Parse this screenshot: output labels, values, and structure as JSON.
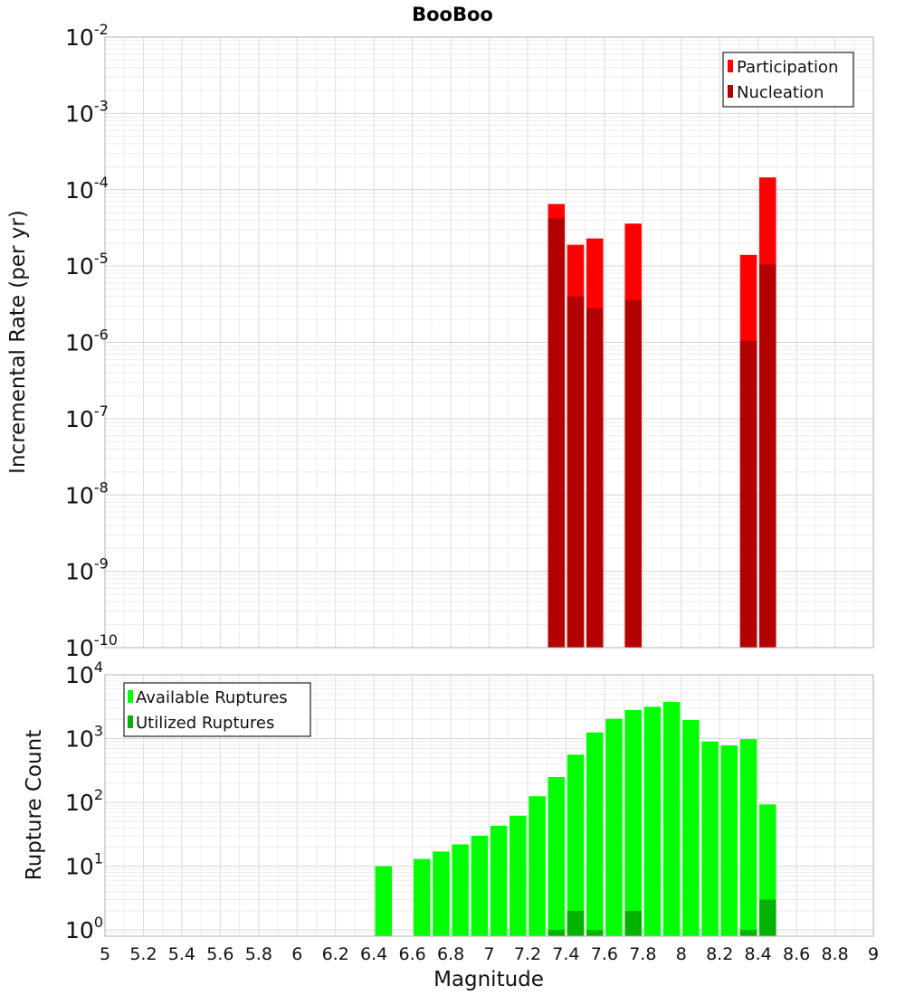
{
  "chart_data": [
    {
      "type": "bar",
      "title": "BooBoo",
      "xlabel": "",
      "ylabel": "Incremental Rate (per yr)",
      "y_scale": "log",
      "ylim": [
        1e-10,
        0.01
      ],
      "xlim": [
        5,
        9
      ],
      "grid": true,
      "legend_position": "top-right",
      "x": [
        7.35,
        7.45,
        7.55,
        7.75,
        8.35,
        8.45
      ],
      "series": [
        {
          "name": "Participation",
          "color": "#ff0000",
          "values": [
            6.5e-05,
            1.9e-05,
            2.3e-05,
            3.6e-05,
            1.4e-05,
            0.000145
          ]
        },
        {
          "name": "Nucleation",
          "color": "#b30000",
          "values": [
            4.2e-05,
            4e-06,
            2.8e-06,
            3.6e-06,
            1.05e-06,
            1.05e-05
          ]
        }
      ]
    },
    {
      "type": "bar",
      "title": "",
      "xlabel": "Magnitude",
      "ylabel": "Rupture Count",
      "y_scale": "log",
      "ylim": [
        0.8,
        10000.0
      ],
      "xlim": [
        5,
        9
      ],
      "grid": true,
      "legend_position": "top-left",
      "x_ticks": [
        "5",
        "5.2",
        "5.4",
        "5.6",
        "5.8",
        "6",
        "6.2",
        "6.4",
        "6.6",
        "6.8",
        "7",
        "7.2",
        "7.4",
        "7.6",
        "7.8",
        "8",
        "8.2",
        "8.4",
        "8.6",
        "8.8",
        "9"
      ],
      "series": [
        {
          "name": "Available Ruptures",
          "color": "#00ff00",
          "x": [
            6.45,
            6.65,
            6.75,
            6.85,
            6.95,
            7.05,
            7.15,
            7.25,
            7.35,
            7.45,
            7.55,
            7.65,
            7.75,
            7.85,
            7.95,
            8.05,
            8.15,
            8.25,
            8.35,
            8.45
          ],
          "values": [
            10,
            13,
            17,
            22,
            30,
            43,
            62,
            125,
            250,
            560,
            1250,
            2050,
            2800,
            3150,
            3750,
            1950,
            900,
            780,
            980,
            93
          ]
        },
        {
          "name": "Utilized Ruptures",
          "color": "#00b300",
          "x": [
            7.35,
            7.45,
            7.55,
            7.75,
            8.35,
            8.45
          ],
          "values": [
            1,
            2,
            1,
            2,
            1,
            3
          ]
        }
      ]
    }
  ]
}
